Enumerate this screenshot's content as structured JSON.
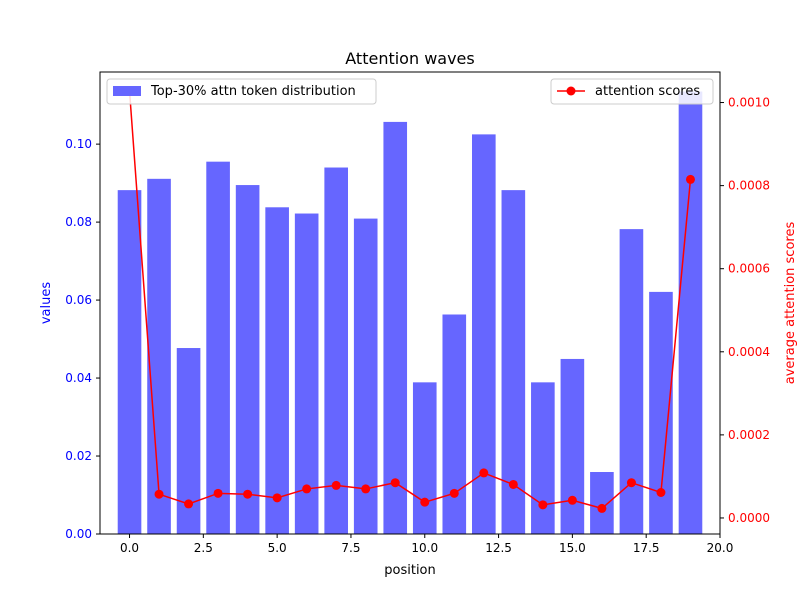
{
  "chart_data": {
    "type": "bar+line",
    "title": "Attention waves",
    "xlabel": "position",
    "ylabel_left": "values",
    "ylabel_right": "average attention scores",
    "xlim": [
      -1.0,
      20.0
    ],
    "ylim_left": [
      0,
      0.1185
    ],
    "ylim_right": [
      -3.86e-05,
      0.0010735
    ],
    "x_ticks": [
      0.0,
      2.5,
      5.0,
      7.5,
      10.0,
      12.5,
      15.0,
      17.5,
      20.0
    ],
    "x_tick_labels": [
      "0.0",
      "2.5",
      "5.0",
      "7.5",
      "10.0",
      "12.5",
      "15.0",
      "17.5",
      "20.0"
    ],
    "y_left_ticks": [
      0.0,
      0.02,
      0.04,
      0.06,
      0.08,
      0.1
    ],
    "y_left_tick_labels": [
      "0.00",
      "0.02",
      "0.04",
      "0.06",
      "0.08",
      "0.10"
    ],
    "y_right_ticks": [
      0.0,
      0.0002,
      0.0004,
      0.0006,
      0.0008,
      0.001
    ],
    "y_right_tick_labels": [
      "0.0000",
      "0.0002",
      "0.0004",
      "0.0006",
      "0.0008",
      "0.0010"
    ],
    "grid": false,
    "bar_series": {
      "name": "Top-30% attn token distribution",
      "color": "#6666ff",
      "axis": "left",
      "legend_position": "top-left",
      "x": [
        0,
        1,
        2,
        3,
        4,
        5,
        6,
        7,
        8,
        9,
        10,
        11,
        12,
        13,
        14,
        15,
        16,
        17,
        18,
        19
      ],
      "values": [
        0.0882,
        0.0911,
        0.0477,
        0.0955,
        0.0895,
        0.0838,
        0.0822,
        0.094,
        0.0809,
        0.1057,
        0.0389,
        0.0563,
        0.1025,
        0.0882,
        0.0389,
        0.0449,
        0.0159,
        0.0782,
        0.0621,
        0.1135
      ]
    },
    "line_series": {
      "name": "attention scores",
      "color": "#ff0000",
      "axis": "right",
      "legend_position": "top-right",
      "x": [
        0,
        1,
        2,
        3,
        4,
        5,
        6,
        7,
        8,
        9,
        10,
        11,
        12,
        13,
        14,
        15,
        16,
        17,
        18,
        19
      ],
      "values": [
        0.001028,
        5.71e-05,
        3.38e-05,
        5.93e-05,
        5.71e-05,
        4.85e-05,
        6.99e-05,
        7.84e-05,
        6.99e-05,
        8.49e-05,
        3.8e-05,
        5.93e-05,
        0.0001084,
        8.06e-05,
        3.16e-05,
        4.25e-05,
        2.3e-05,
        8.49e-05,
        6.13e-05,
        0.000815
      ]
    }
  }
}
